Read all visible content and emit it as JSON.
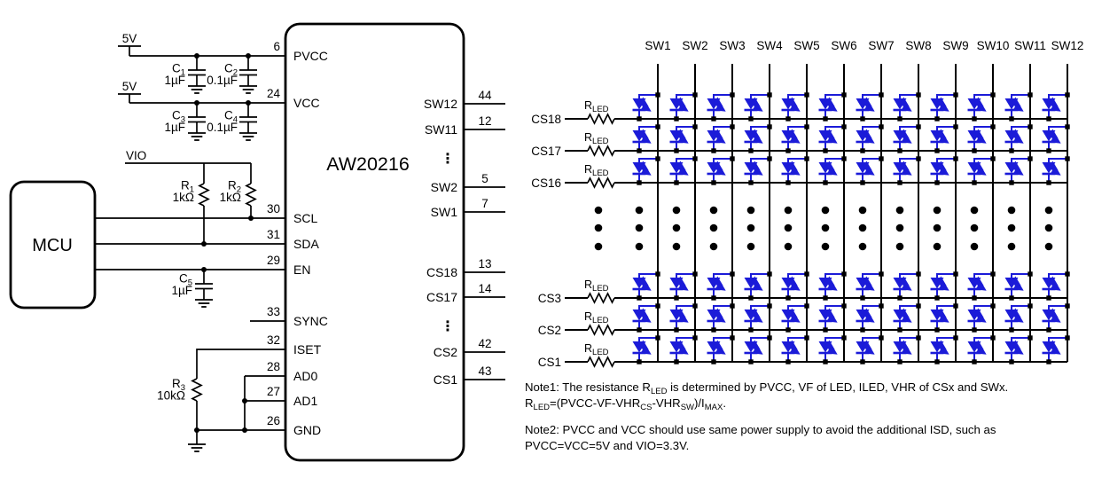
{
  "colors": {
    "wire": "#000000",
    "led": "#1B1BD8",
    "background": "#FFFFFF"
  },
  "mcu": {
    "label": "MCU"
  },
  "supplies": {
    "rail1": "5V",
    "rail2": "5V",
    "vio": "VIO"
  },
  "chip": {
    "name": "AW20216",
    "ellipsis": "⋮",
    "left_pins": [
      {
        "num": "6",
        "label": "PVCC"
      },
      {
        "num": "24",
        "label": "VCC"
      },
      {
        "num": "30",
        "label": "SCL"
      },
      {
        "num": "31",
        "label": "SDA"
      },
      {
        "num": "29",
        "label": "EN"
      },
      {
        "num": "33",
        "label": "SYNC"
      },
      {
        "num": "32",
        "label": "ISET"
      },
      {
        "num": "28",
        "label": "AD0"
      },
      {
        "num": "27",
        "label": "AD1"
      },
      {
        "num": "26",
        "label": "GND"
      }
    ],
    "right_pins_sw": [
      {
        "num": "44",
        "label": "SW12"
      },
      {
        "num": "12",
        "label": "SW11"
      },
      {
        "num": "5",
        "label": "SW2"
      },
      {
        "num": "7",
        "label": "SW1"
      }
    ],
    "right_pins_cs": [
      {
        "num": "13",
        "label": "CS18"
      },
      {
        "num": "14",
        "label": "CS17"
      },
      {
        "num": "42",
        "label": "CS2"
      },
      {
        "num": "43",
        "label": "CS1"
      }
    ]
  },
  "components": {
    "c1": {
      "base": "C",
      "sub": "1",
      "value": "1µF"
    },
    "c2": {
      "base": "C",
      "sub": "2",
      "value": "0.1µF"
    },
    "c3": {
      "base": "C",
      "sub": "3",
      "value": "1µF"
    },
    "c4": {
      "base": "C",
      "sub": "4",
      "value": "0.1µF"
    },
    "c5": {
      "base": "C",
      "sub": "5",
      "value": "1µF"
    },
    "r1": {
      "base": "R",
      "sub": "1",
      "value": "1kΩ"
    },
    "r2": {
      "base": "R",
      "sub": "2",
      "value": "1kΩ"
    },
    "r3": {
      "base": "R",
      "sub": "3",
      "value": "10kΩ"
    },
    "rled": {
      "base": "R",
      "sub": "LED"
    }
  },
  "matrix": {
    "sw_labels": [
      "SW1",
      "SW2",
      "SW3",
      "SW4",
      "SW5",
      "SW6",
      "SW7",
      "SW8",
      "SW9",
      "SW10",
      "SW11",
      "SW12"
    ],
    "cs_labels": [
      "CS18",
      "CS17",
      "CS16",
      "CS3",
      "CS2",
      "CS1"
    ]
  },
  "notes": {
    "note1": [
      [
        {
          "t": "Note1: The resistance R"
        },
        {
          "t": "LED",
          "sub": true
        },
        {
          "t": " is determined by PVCC, VF of LED, ILED, VHR of CSx and SWx."
        }
      ],
      [
        {
          "t": "R"
        },
        {
          "t": "LED",
          "sub": true
        },
        {
          "t": "=(PVCC-VF-VHR"
        },
        {
          "t": "CS",
          "sub": true
        },
        {
          "t": "-VHR"
        },
        {
          "t": "SW",
          "sub": true
        },
        {
          "t": ")/I"
        },
        {
          "t": "MAX",
          "sub": true
        },
        {
          "t": "."
        }
      ]
    ],
    "note2": [
      [
        {
          "t": "Note2: PVCC and VCC should use same power supply to avoid the additional ISD, such as"
        }
      ],
      [
        {
          "t": "PVCC=VCC=5V and VIO=3.3V."
        }
      ]
    ]
  }
}
